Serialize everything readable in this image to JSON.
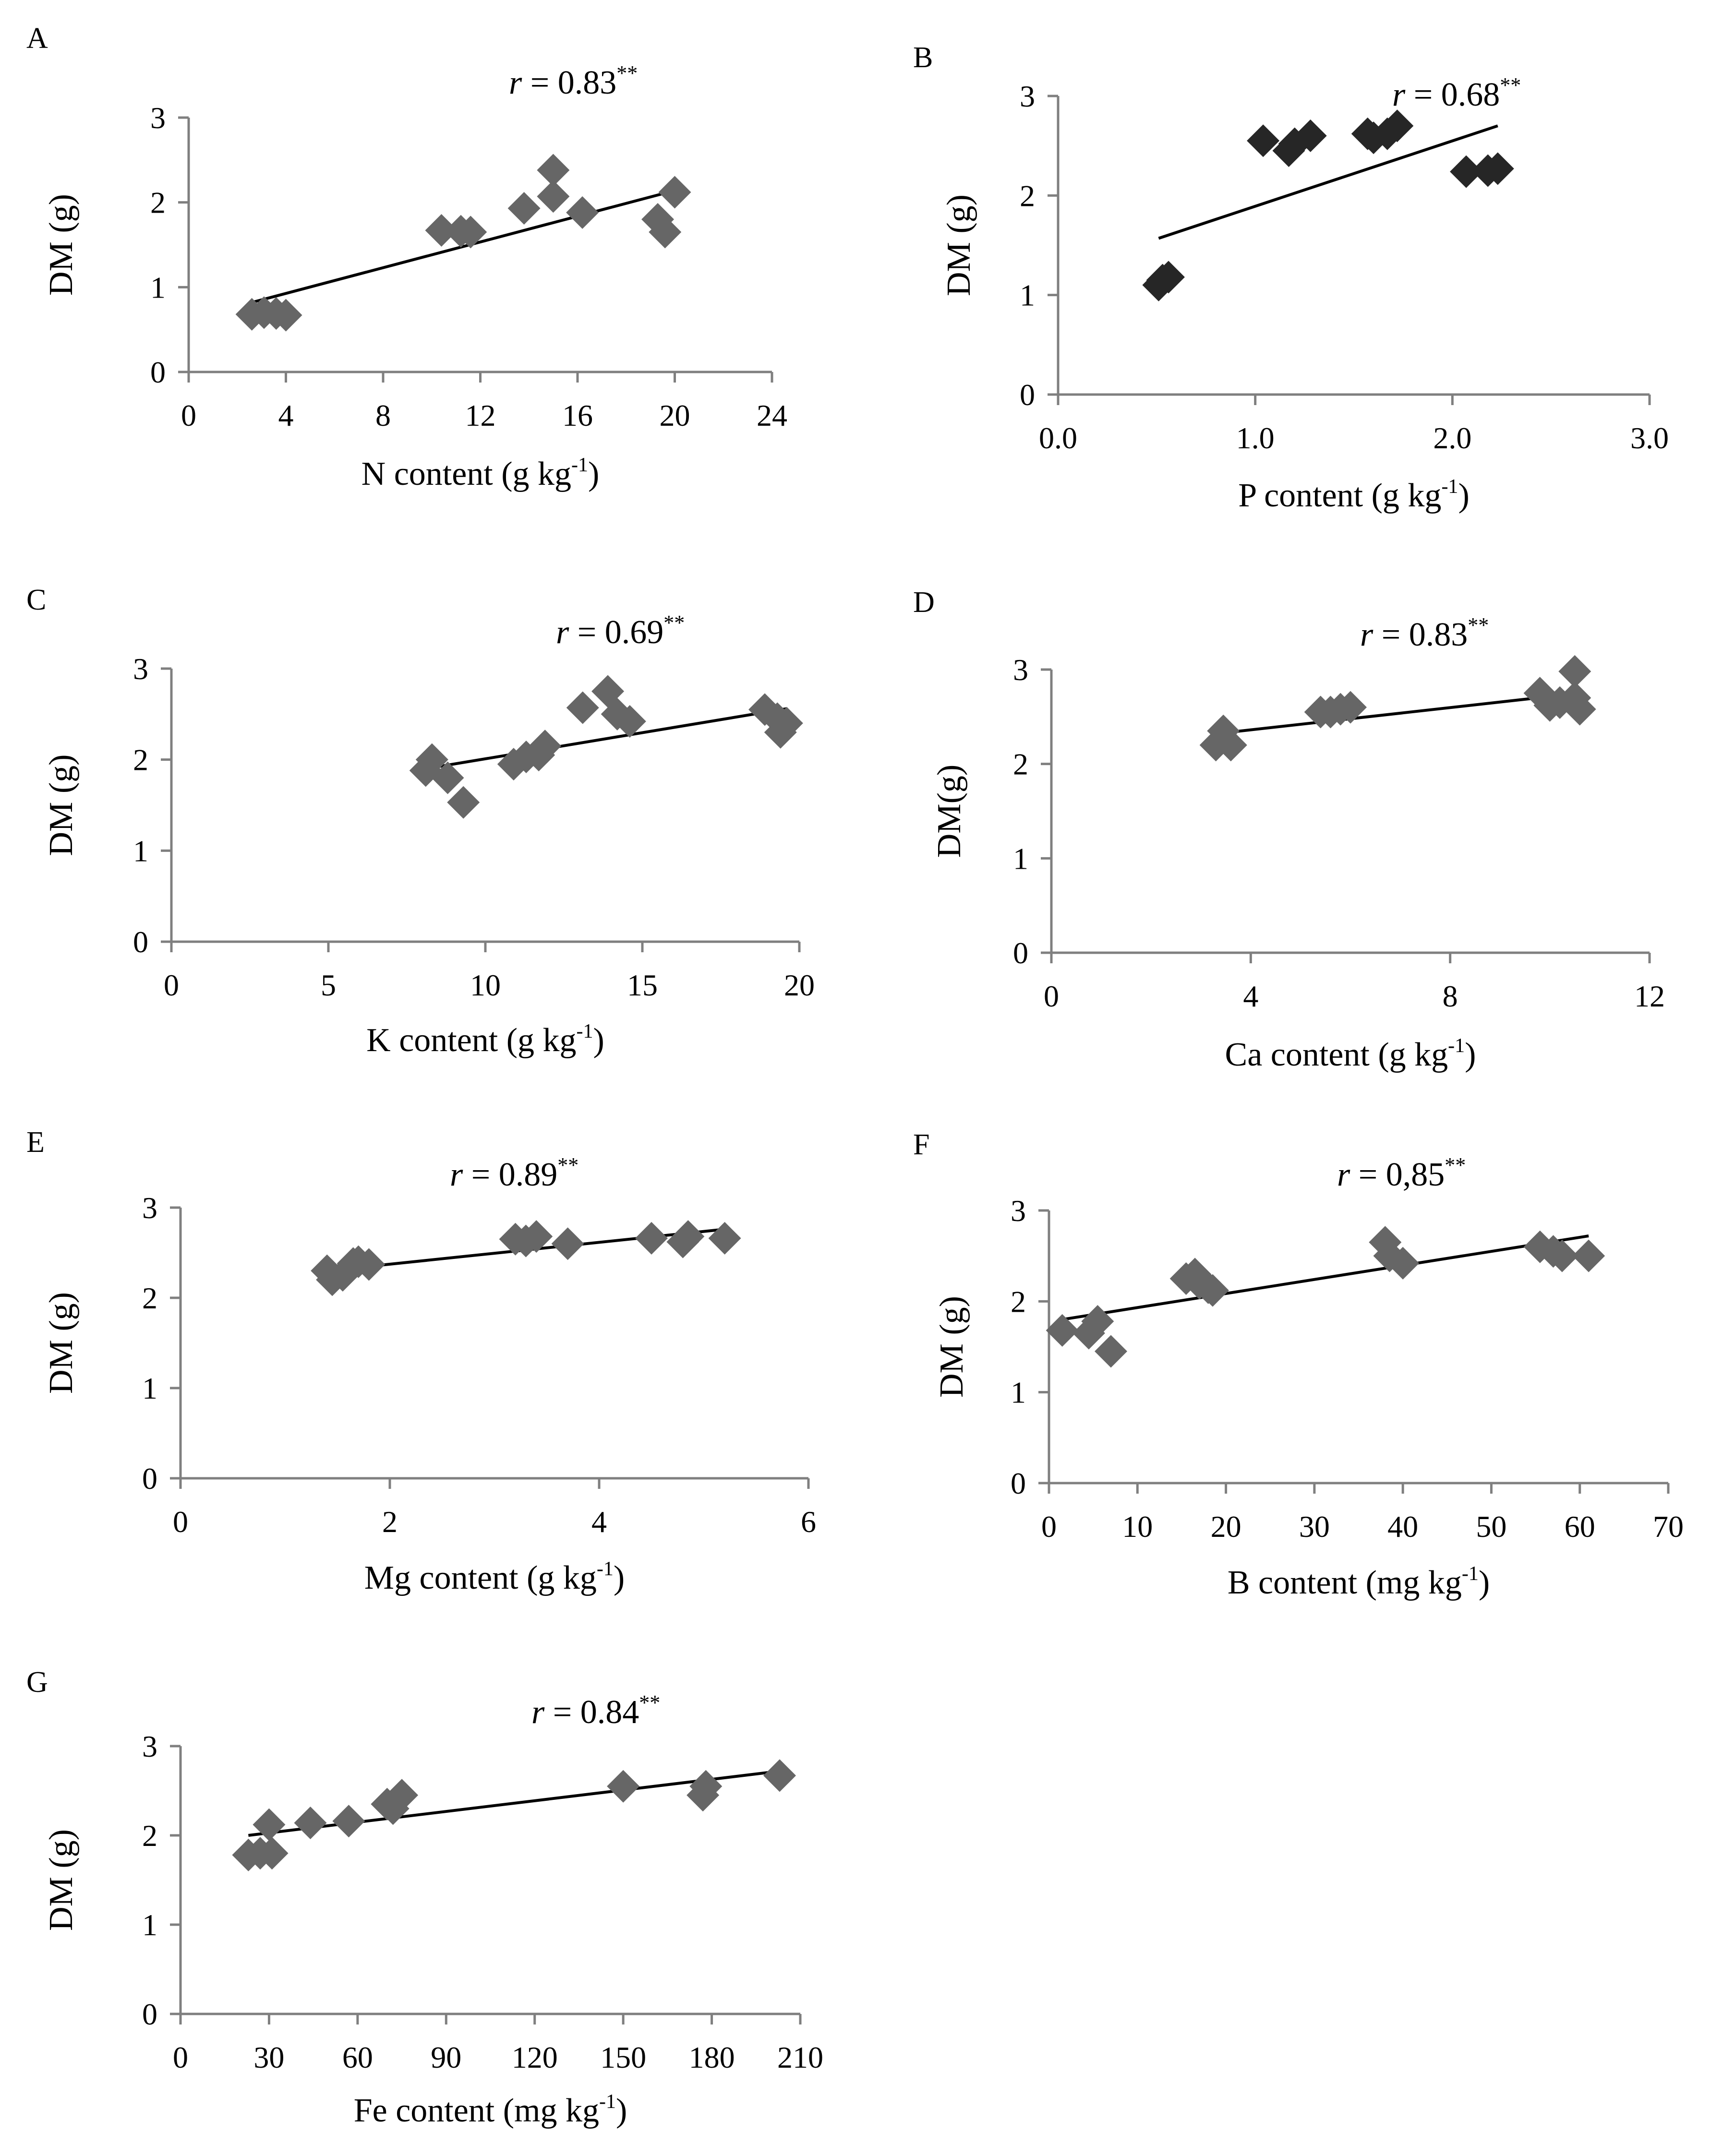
{
  "figure": {
    "panel_count": 7,
    "marker_colors": {
      "gray": "#666666",
      "dark": "#262626"
    },
    "trend_color": "#000000",
    "axis_color": "#7f7f7f"
  },
  "chart_data": [
    {
      "type": "scatter",
      "panel": "A",
      "r_prefix": "r",
      "r_value": " = 0.83",
      "r_sig": "**",
      "xlabel": "N content (g kg",
      "xlabel_sup": "-1",
      "xlabel_close": ")",
      "ylabel": "DM (g)",
      "xlim": [
        0,
        24
      ],
      "ylim": [
        0,
        3
      ],
      "xticks": [
        0,
        4,
        8,
        12,
        16,
        20,
        24
      ],
      "xtick_labels": [
        "0",
        "4",
        "8",
        "12",
        "16",
        "20",
        "24"
      ],
      "yticks": [
        0,
        1,
        2,
        3
      ],
      "ytick_labels": [
        "0",
        "1",
        "2",
        "3"
      ],
      "marker_color": "#666666",
      "points": [
        {
          "x": 2.6,
          "y": 0.68
        },
        {
          "x": 3.1,
          "y": 0.7
        },
        {
          "x": 3.6,
          "y": 0.69
        },
        {
          "x": 4.0,
          "y": 0.67
        },
        {
          "x": 10.4,
          "y": 1.67
        },
        {
          "x": 11.2,
          "y": 1.66
        },
        {
          "x": 11.6,
          "y": 1.65
        },
        {
          "x": 13.8,
          "y": 1.93
        },
        {
          "x": 15.0,
          "y": 2.38
        },
        {
          "x": 15.0,
          "y": 2.07
        },
        {
          "x": 16.2,
          "y": 1.88
        },
        {
          "x": 19.3,
          "y": 1.8
        },
        {
          "x": 19.6,
          "y": 1.65
        },
        {
          "x": 20.0,
          "y": 2.12
        }
      ],
      "trend": [
        {
          "x": 2.6,
          "y": 0.82
        },
        {
          "x": 20.0,
          "y": 2.14
        }
      ]
    },
    {
      "type": "scatter",
      "panel": "B",
      "r_prefix": "r",
      "r_value": " = 0.68",
      "r_sig": "**",
      "xlabel": "P content (g kg",
      "xlabel_sup": "-1",
      "xlabel_close": ")",
      "ylabel": "DM (g)",
      "xlim": [
        0,
        3
      ],
      "ylim": [
        0,
        3
      ],
      "xticks": [
        0,
        1,
        2,
        3
      ],
      "xtick_labels": [
        "0.0",
        "1.0",
        "2.0",
        "3.0"
      ],
      "yticks": [
        0,
        1,
        2,
        3
      ],
      "ytick_labels": [
        "0",
        "1",
        "2",
        "3"
      ],
      "marker_color": "#262626",
      "points": [
        {
          "x": 0.51,
          "y": 1.1
        },
        {
          "x": 0.53,
          "y": 1.15
        },
        {
          "x": 0.56,
          "y": 1.18
        },
        {
          "x": 1.04,
          "y": 2.55
        },
        {
          "x": 1.17,
          "y": 2.45
        },
        {
          "x": 1.2,
          "y": 2.52
        },
        {
          "x": 1.28,
          "y": 2.6
        },
        {
          "x": 1.57,
          "y": 2.62
        },
        {
          "x": 1.6,
          "y": 2.58
        },
        {
          "x": 1.67,
          "y": 2.62
        },
        {
          "x": 1.72,
          "y": 2.7
        },
        {
          "x": 2.07,
          "y": 2.24
        },
        {
          "x": 2.18,
          "y": 2.25
        },
        {
          "x": 2.23,
          "y": 2.27
        }
      ],
      "trend": [
        {
          "x": 0.51,
          "y": 1.57
        },
        {
          "x": 2.23,
          "y": 2.7
        }
      ]
    },
    {
      "type": "scatter",
      "panel": "C",
      "r_prefix": "r",
      "r_value": " = 0.69",
      "r_sig": "**",
      "xlabel": "K content (g kg",
      "xlabel_sup": "-1",
      "xlabel_close": ")",
      "ylabel": "DM (g)",
      "xlim": [
        0,
        20
      ],
      "ylim": [
        0,
        3
      ],
      "xticks": [
        0,
        5,
        10,
        15,
        20
      ],
      "xtick_labels": [
        "0",
        "5",
        "10",
        "15",
        "20"
      ],
      "yticks": [
        0,
        1,
        2,
        3
      ],
      "ytick_labels": [
        "0",
        "1",
        "2",
        "3"
      ],
      "marker_color": "#666666",
      "points": [
        {
          "x": 8.1,
          "y": 1.88
        },
        {
          "x": 8.3,
          "y": 2.0
        },
        {
          "x": 8.8,
          "y": 1.8
        },
        {
          "x": 9.3,
          "y": 1.53
        },
        {
          "x": 10.9,
          "y": 1.95
        },
        {
          "x": 11.3,
          "y": 2.03
        },
        {
          "x": 11.7,
          "y": 2.05
        },
        {
          "x": 11.9,
          "y": 2.15
        },
        {
          "x": 13.1,
          "y": 2.57
        },
        {
          "x": 13.9,
          "y": 2.75
        },
        {
          "x": 14.2,
          "y": 2.5
        },
        {
          "x": 14.6,
          "y": 2.42
        },
        {
          "x": 18.9,
          "y": 2.55
        },
        {
          "x": 19.3,
          "y": 2.45
        },
        {
          "x": 19.4,
          "y": 2.3
        },
        {
          "x": 19.6,
          "y": 2.4
        }
      ],
      "trend": [
        {
          "x": 8.1,
          "y": 1.9
        },
        {
          "x": 19.6,
          "y": 2.56
        }
      ]
    },
    {
      "type": "scatter",
      "panel": "D",
      "r_prefix": "r",
      "r_value": " = 0.83",
      "r_sig": "**",
      "xlabel": "Ca content (g kg",
      "xlabel_sup": "-1",
      "xlabel_close": ")",
      "ylabel": "DM(g)",
      "xlim": [
        0,
        12
      ],
      "ylim": [
        0,
        3
      ],
      "xticks": [
        0,
        4,
        8,
        12
      ],
      "xtick_labels": [
        "0",
        "4",
        "8",
        "12"
      ],
      "yticks": [
        0,
        1,
        2,
        3
      ],
      "ytick_labels": [
        "0",
        "1",
        "2",
        "3"
      ],
      "marker_color": "#666666",
      "points": [
        {
          "x": 3.3,
          "y": 2.2
        },
        {
          "x": 3.45,
          "y": 2.35
        },
        {
          "x": 3.6,
          "y": 2.2
        },
        {
          "x": 5.4,
          "y": 2.55
        },
        {
          "x": 5.6,
          "y": 2.55
        },
        {
          "x": 5.8,
          "y": 2.58
        },
        {
          "x": 6.0,
          "y": 2.6
        },
        {
          "x": 9.8,
          "y": 2.75
        },
        {
          "x": 10.0,
          "y": 2.62
        },
        {
          "x": 10.2,
          "y": 2.65
        },
        {
          "x": 10.5,
          "y": 2.98
        },
        {
          "x": 10.5,
          "y": 2.7
        },
        {
          "x": 10.6,
          "y": 2.58
        }
      ],
      "trend": [
        {
          "x": 3.3,
          "y": 2.32
        },
        {
          "x": 10.6,
          "y": 2.75
        }
      ]
    },
    {
      "type": "scatter",
      "panel": "E",
      "r_prefix": "r",
      "r_value": " = 0.89",
      "r_sig": "**",
      "xlabel": "Mg content (g kg",
      "xlabel_sup": "-1",
      "xlabel_close": ")",
      "ylabel": "DM (g)",
      "xlim": [
        0,
        6
      ],
      "ylim": [
        0,
        3
      ],
      "xticks": [
        0,
        2,
        4,
        6
      ],
      "xtick_labels": [
        "0",
        "2",
        "4",
        "6"
      ],
      "yticks": [
        0,
        1,
        2,
        3
      ],
      "ytick_labels": [
        "0",
        "1",
        "2",
        "3"
      ],
      "marker_color": "#666666",
      "points": [
        {
          "x": 1.4,
          "y": 2.3
        },
        {
          "x": 1.45,
          "y": 2.2
        },
        {
          "x": 1.55,
          "y": 2.25
        },
        {
          "x": 1.65,
          "y": 2.38
        },
        {
          "x": 1.7,
          "y": 2.4
        },
        {
          "x": 1.8,
          "y": 2.37
        },
        {
          "x": 3.2,
          "y": 2.65
        },
        {
          "x": 3.3,
          "y": 2.63
        },
        {
          "x": 3.4,
          "y": 2.68
        },
        {
          "x": 3.7,
          "y": 2.6
        },
        {
          "x": 4.5,
          "y": 2.66
        },
        {
          "x": 4.8,
          "y": 2.62
        },
        {
          "x": 4.85,
          "y": 2.68
        },
        {
          "x": 5.2,
          "y": 2.66
        }
      ],
      "trend": [
        {
          "x": 1.4,
          "y": 2.3
        },
        {
          "x": 5.2,
          "y": 2.76
        }
      ]
    },
    {
      "type": "scatter",
      "panel": "F",
      "r_prefix": "r",
      "r_value": " = 0,85",
      "r_sig": "**",
      "xlabel": "B content (mg kg",
      "xlabel_sup": "-1",
      "xlabel_close": ")",
      "ylabel": "DM (g)",
      "xlim": [
        0,
        70
      ],
      "ylim": [
        0,
        3
      ],
      "xticks": [
        0,
        10,
        20,
        30,
        40,
        50,
        60,
        70
      ],
      "xtick_labels": [
        "0",
        "10",
        "20",
        "30",
        "40",
        "50",
        "60",
        "70"
      ],
      "yticks": [
        0,
        1,
        2,
        3
      ],
      "ytick_labels": [
        "0",
        "1",
        "2",
        "3"
      ],
      "marker_color": "#666666",
      "points": [
        {
          "x": 1.5,
          "y": 1.68
        },
        {
          "x": 4.5,
          "y": 1.65
        },
        {
          "x": 5.5,
          "y": 1.78
        },
        {
          "x": 7.0,
          "y": 1.45
        },
        {
          "x": 15.5,
          "y": 2.25
        },
        {
          "x": 16.5,
          "y": 2.3
        },
        {
          "x": 17.0,
          "y": 2.2
        },
        {
          "x": 18.0,
          "y": 2.15
        },
        {
          "x": 18.5,
          "y": 2.12
        },
        {
          "x": 38.0,
          "y": 2.65
        },
        {
          "x": 38.5,
          "y": 2.5
        },
        {
          "x": 40.0,
          "y": 2.42
        },
        {
          "x": 55.5,
          "y": 2.6
        },
        {
          "x": 57.0,
          "y": 2.55
        },
        {
          "x": 58.0,
          "y": 2.5
        },
        {
          "x": 61.0,
          "y": 2.5
        }
      ],
      "trend": [
        {
          "x": 1.5,
          "y": 1.8
        },
        {
          "x": 61.0,
          "y": 2.72
        }
      ]
    },
    {
      "type": "scatter",
      "panel": "G",
      "r_prefix": "r",
      "r_value": " = 0.84",
      "r_sig": "**",
      "xlabel": "Fe content (mg kg",
      "xlabel_sup": "-1",
      "xlabel_close": ")",
      "ylabel": "DM (g)",
      "xlim": [
        0,
        210
      ],
      "ylim": [
        0,
        3
      ],
      "xticks": [
        0,
        30,
        60,
        90,
        120,
        150,
        180,
        210
      ],
      "xtick_labels": [
        "0",
        "30",
        "60",
        "90",
        "120",
        "150",
        "180",
        "210"
      ],
      "yticks": [
        0,
        1,
        2,
        3
      ],
      "ytick_labels": [
        "0",
        "1",
        "2",
        "3"
      ],
      "marker_color": "#666666",
      "points": [
        {
          "x": 23,
          "y": 1.78
        },
        {
          "x": 27,
          "y": 1.8
        },
        {
          "x": 30,
          "y": 2.12
        },
        {
          "x": 31,
          "y": 1.8
        },
        {
          "x": 44,
          "y": 2.14
        },
        {
          "x": 57,
          "y": 2.16
        },
        {
          "x": 70,
          "y": 2.35
        },
        {
          "x": 72,
          "y": 2.3
        },
        {
          "x": 75,
          "y": 2.45
        },
        {
          "x": 150,
          "y": 2.55
        },
        {
          "x": 177,
          "y": 2.45
        },
        {
          "x": 178,
          "y": 2.55
        },
        {
          "x": 203,
          "y": 2.67
        }
      ],
      "trend": [
        {
          "x": 23,
          "y": 2.0
        },
        {
          "x": 203,
          "y": 2.72
        }
      ]
    }
  ]
}
